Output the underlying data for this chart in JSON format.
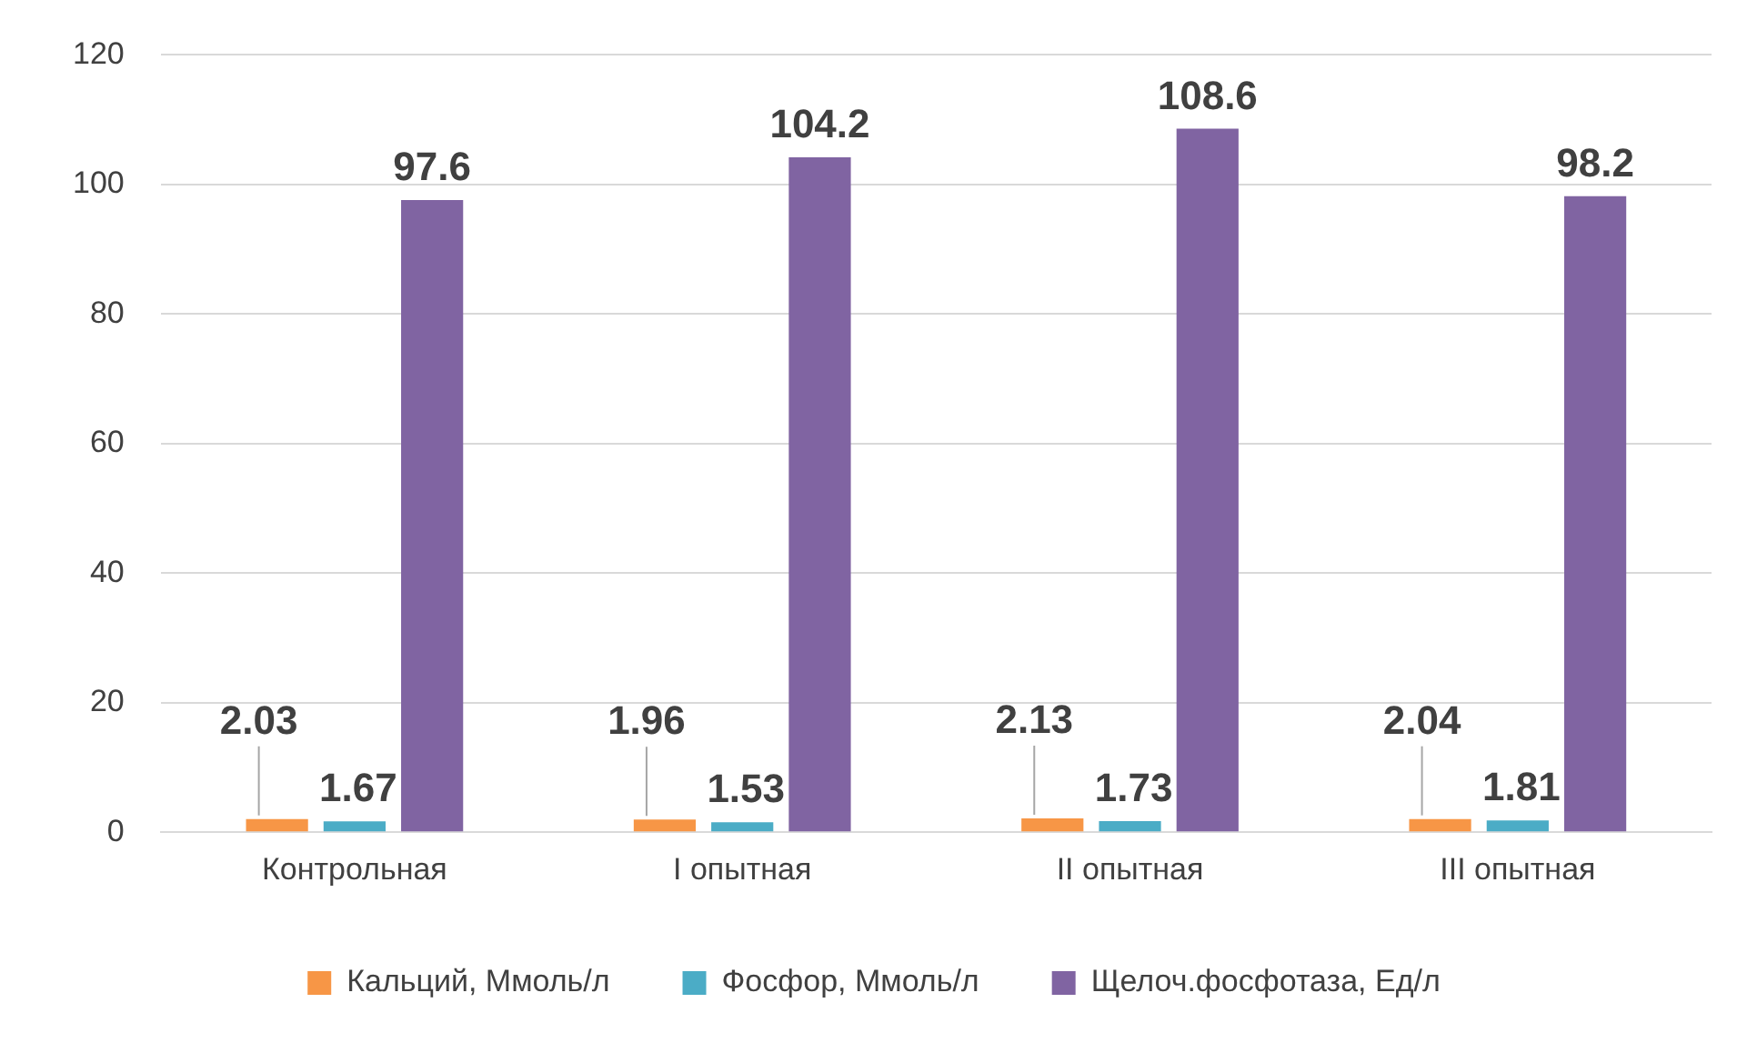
{
  "chart_data": {
    "type": "bar",
    "categories": [
      "Контрольная",
      "I опытная",
      "II опытная",
      "III опытная"
    ],
    "series": [
      {
        "name": "Кальций, Ммоль/л",
        "color": "#f79646",
        "values": [
          2.03,
          1.96,
          2.13,
          2.04
        ]
      },
      {
        "name": "Фосфор, Ммоль/л",
        "color": "#4bacc6",
        "values": [
          1.67,
          1.53,
          1.73,
          1.81
        ]
      },
      {
        "name": "Щелоч.фосфотаза, Ед/л",
        "color": "#8064a2",
        "values": [
          97.6,
          104.2,
          108.6,
          98.2
        ]
      }
    ],
    "ylim": [
      0,
      120
    ],
    "yticks": [
      0,
      20,
      40,
      60,
      80,
      100,
      120
    ],
    "grid": "y",
    "legend": "bottom",
    "data_labels": true
  }
}
